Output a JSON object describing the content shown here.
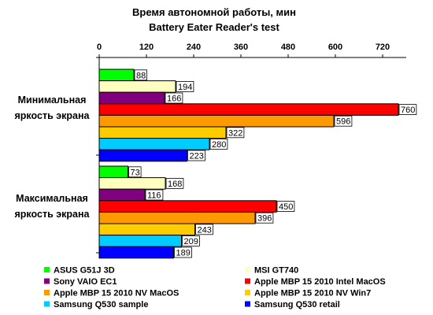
{
  "chart_data": {
    "type": "bar",
    "orientation": "horizontal",
    "title": "Время автономной работы, мин",
    "subtitle": "Battery Eater Reader's test",
    "categories": [
      [
        "Минимальная",
        "яркость экрана"
      ],
      [
        "Максимальная",
        "яркость экрана"
      ]
    ],
    "xlim": [
      0,
      780
    ],
    "xticks": [
      0,
      120,
      240,
      360,
      480,
      600,
      720
    ],
    "grid": false,
    "axis_position": "top",
    "legend_position": "bottom",
    "series": [
      {
        "name": "ASUS G51J 3D",
        "color": "#00ff00",
        "values": [
          88,
          73
        ]
      },
      {
        "name": "MSI GT740",
        "color": "#ffffc0",
        "values": [
          194,
          168
        ]
      },
      {
        "name": "Sony VAIO EC1",
        "color": "#800080",
        "values": [
          166,
          116
        ]
      },
      {
        "name": "Apple MBP 15 2010 Intel MacOS",
        "color": "#ff0000",
        "values": [
          760,
          450
        ]
      },
      {
        "name": "Apple MBP 15 2010 NV MacOS",
        "color": "#ff9900",
        "values": [
          596,
          396
        ]
      },
      {
        "name": "Apple MBP 15 2010 NV Win7",
        "color": "#ffcc00",
        "values": [
          322,
          243
        ]
      },
      {
        "name": "Samsung Q530 sample",
        "color": "#00ccff",
        "values": [
          280,
          209
        ]
      },
      {
        "name": "Samsung Q530 retail",
        "color": "#0000ff",
        "values": [
          223,
          189
        ]
      }
    ]
  }
}
